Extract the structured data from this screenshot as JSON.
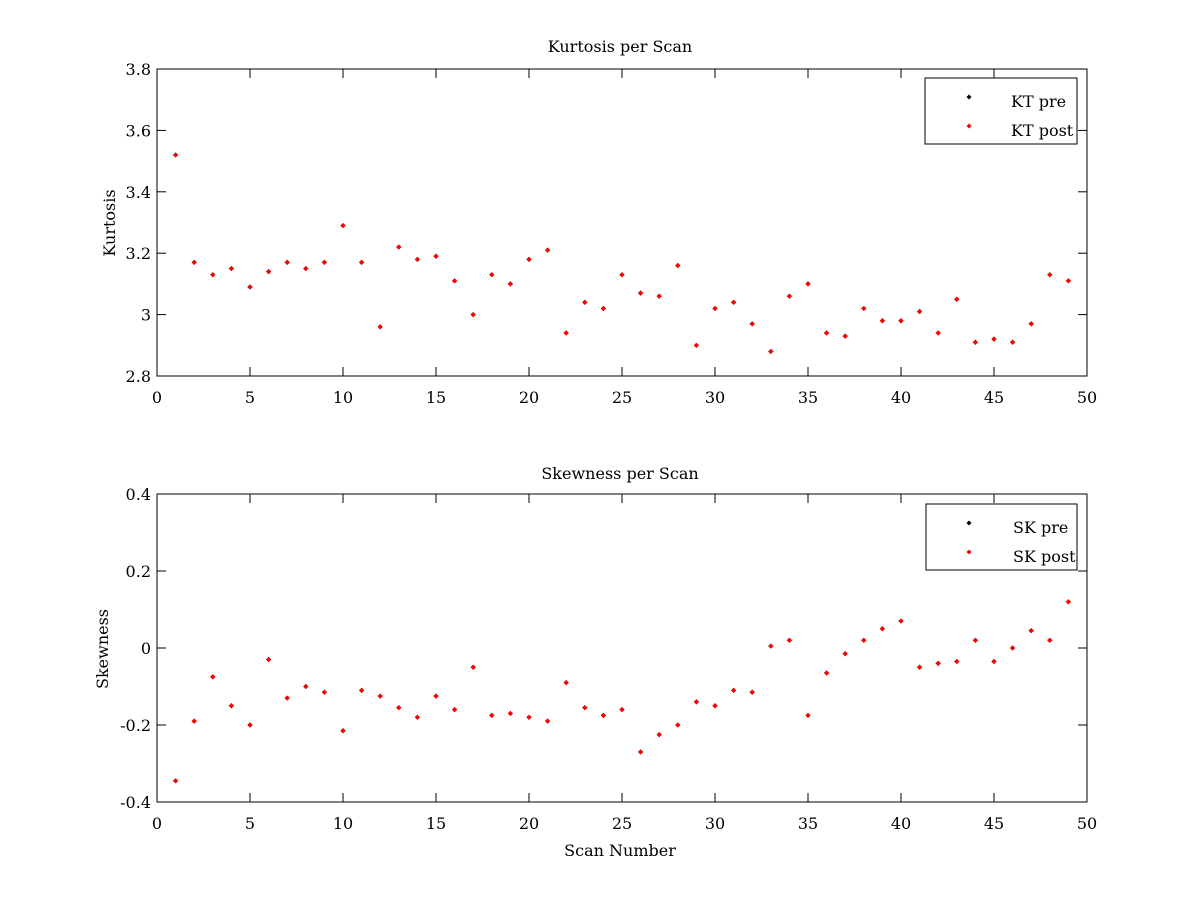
{
  "chart_data": [
    {
      "type": "scatter",
      "title": "Kurtosis per Scan",
      "xlabel": "",
      "ylabel": "Kurtosis",
      "xlim": [
        0,
        50
      ],
      "ylim": [
        2.8,
        3.8
      ],
      "xticks": [
        "0",
        "5",
        "10",
        "15",
        "20",
        "25",
        "30",
        "35",
        "40",
        "45",
        "50"
      ],
      "yticks": [
        "2.8",
        "3",
        "3.2",
        "3.4",
        "3.6",
        "3.8"
      ],
      "grid": false,
      "legend_position": "top-right",
      "series": [
        {
          "name": "KT pre",
          "color": "#000000",
          "x": [
            1,
            2,
            3,
            4,
            5,
            6,
            7,
            8,
            9,
            10,
            11,
            12,
            13,
            14,
            15,
            16,
            17,
            18,
            19,
            20,
            21,
            22,
            23,
            24,
            25,
            26,
            27,
            28,
            29,
            30,
            31,
            32,
            33,
            34,
            35,
            36,
            37,
            38,
            39,
            40,
            41,
            42,
            43,
            44,
            45,
            46,
            47,
            48,
            49
          ],
          "y": [
            3.52,
            3.17,
            3.13,
            3.15,
            3.09,
            3.14,
            3.17,
            3.15,
            3.17,
            3.29,
            3.17,
            2.96,
            3.22,
            3.18,
            3.19,
            3.11,
            3.0,
            3.13,
            3.1,
            3.18,
            3.21,
            2.94,
            3.04,
            3.02,
            3.13,
            3.07,
            3.06,
            3.16,
            2.9,
            3.02,
            3.04,
            2.97,
            2.88,
            3.06,
            3.1,
            2.94,
            2.93,
            3.02,
            2.98,
            2.98,
            3.01,
            2.94,
            3.05,
            2.91,
            2.92,
            2.91,
            2.97,
            3.13,
            3.11
          ]
        },
        {
          "name": "KT post",
          "color": "#ff0000",
          "x": [
            1,
            2,
            3,
            4,
            5,
            6,
            7,
            8,
            9,
            10,
            11,
            12,
            13,
            14,
            15,
            16,
            17,
            18,
            19,
            20,
            21,
            22,
            23,
            24,
            25,
            26,
            27,
            28,
            29,
            30,
            31,
            32,
            33,
            34,
            35,
            36,
            37,
            38,
            39,
            40,
            41,
            42,
            43,
            44,
            45,
            46,
            47,
            48,
            49
          ],
          "y": [
            3.52,
            3.17,
            3.13,
            3.15,
            3.09,
            3.14,
            3.17,
            3.15,
            3.17,
            3.29,
            3.17,
            2.96,
            3.22,
            3.18,
            3.19,
            3.11,
            3.0,
            3.13,
            3.1,
            3.18,
            3.21,
            2.94,
            3.04,
            3.02,
            3.13,
            3.07,
            3.06,
            3.16,
            2.9,
            3.02,
            3.04,
            2.97,
            2.88,
            3.06,
            3.1,
            2.94,
            2.93,
            3.02,
            2.98,
            2.98,
            3.01,
            2.94,
            3.05,
            2.91,
            2.92,
            2.91,
            2.97,
            3.13,
            3.11
          ]
        }
      ]
    },
    {
      "type": "scatter",
      "title": "Skewness per Scan",
      "xlabel": "Scan Number",
      "ylabel": "Skewness",
      "xlim": [
        0,
        50
      ],
      "ylim": [
        -0.4,
        0.4
      ],
      "xticks": [
        "0",
        "5",
        "10",
        "15",
        "20",
        "25",
        "30",
        "35",
        "40",
        "45",
        "50"
      ],
      "yticks": [
        "-0.4",
        "-0.2",
        "0",
        "0.2",
        "0.4"
      ],
      "grid": false,
      "legend_position": "top-right",
      "series": [
        {
          "name": "SK pre",
          "color": "#000000",
          "x": [
            1,
            2,
            3,
            4,
            5,
            6,
            7,
            8,
            9,
            10,
            11,
            12,
            13,
            14,
            15,
            16,
            17,
            18,
            19,
            20,
            21,
            22,
            23,
            24,
            25,
            26,
            27,
            28,
            29,
            30,
            31,
            32,
            33,
            34,
            35,
            36,
            37,
            38,
            39,
            40,
            41,
            42,
            43,
            44,
            45,
            46,
            47,
            48,
            49
          ],
          "y": [
            -0.345,
            -0.19,
            -0.075,
            -0.15,
            -0.2,
            -0.03,
            -0.13,
            -0.1,
            -0.115,
            -0.215,
            -0.11,
            -0.125,
            -0.155,
            -0.18,
            -0.125,
            -0.16,
            -0.05,
            -0.175,
            -0.17,
            -0.18,
            -0.19,
            -0.09,
            -0.155,
            -0.175,
            -0.16,
            -0.27,
            -0.225,
            -0.2,
            -0.14,
            -0.15,
            -0.11,
            -0.115,
            0.005,
            0.02,
            -0.175,
            -0.065,
            -0.015,
            0.02,
            0.05,
            0.07,
            -0.05,
            -0.04,
            -0.035,
            0.02,
            -0.035,
            0.0,
            0.045,
            0.02,
            0.12
          ]
        },
        {
          "name": "SK post",
          "color": "#ff0000",
          "x": [
            1,
            2,
            3,
            4,
            5,
            6,
            7,
            8,
            9,
            10,
            11,
            12,
            13,
            14,
            15,
            16,
            17,
            18,
            19,
            20,
            21,
            22,
            23,
            24,
            25,
            26,
            27,
            28,
            29,
            30,
            31,
            32,
            33,
            34,
            35,
            36,
            37,
            38,
            39,
            40,
            41,
            42,
            43,
            44,
            45,
            46,
            47,
            48,
            49
          ],
          "y": [
            -0.345,
            -0.19,
            -0.075,
            -0.15,
            -0.2,
            -0.03,
            -0.13,
            -0.1,
            -0.115,
            -0.215,
            -0.11,
            -0.125,
            -0.155,
            -0.18,
            -0.125,
            -0.16,
            -0.05,
            -0.175,
            -0.17,
            -0.18,
            -0.19,
            -0.09,
            -0.155,
            -0.175,
            -0.16,
            -0.27,
            -0.225,
            -0.2,
            -0.14,
            -0.15,
            -0.11,
            -0.115,
            0.005,
            0.02,
            -0.175,
            -0.065,
            -0.015,
            0.02,
            0.05,
            0.07,
            -0.05,
            -0.04,
            -0.035,
            0.02,
            -0.035,
            0.0,
            0.045,
            0.02,
            0.12
          ]
        }
      ]
    }
  ]
}
